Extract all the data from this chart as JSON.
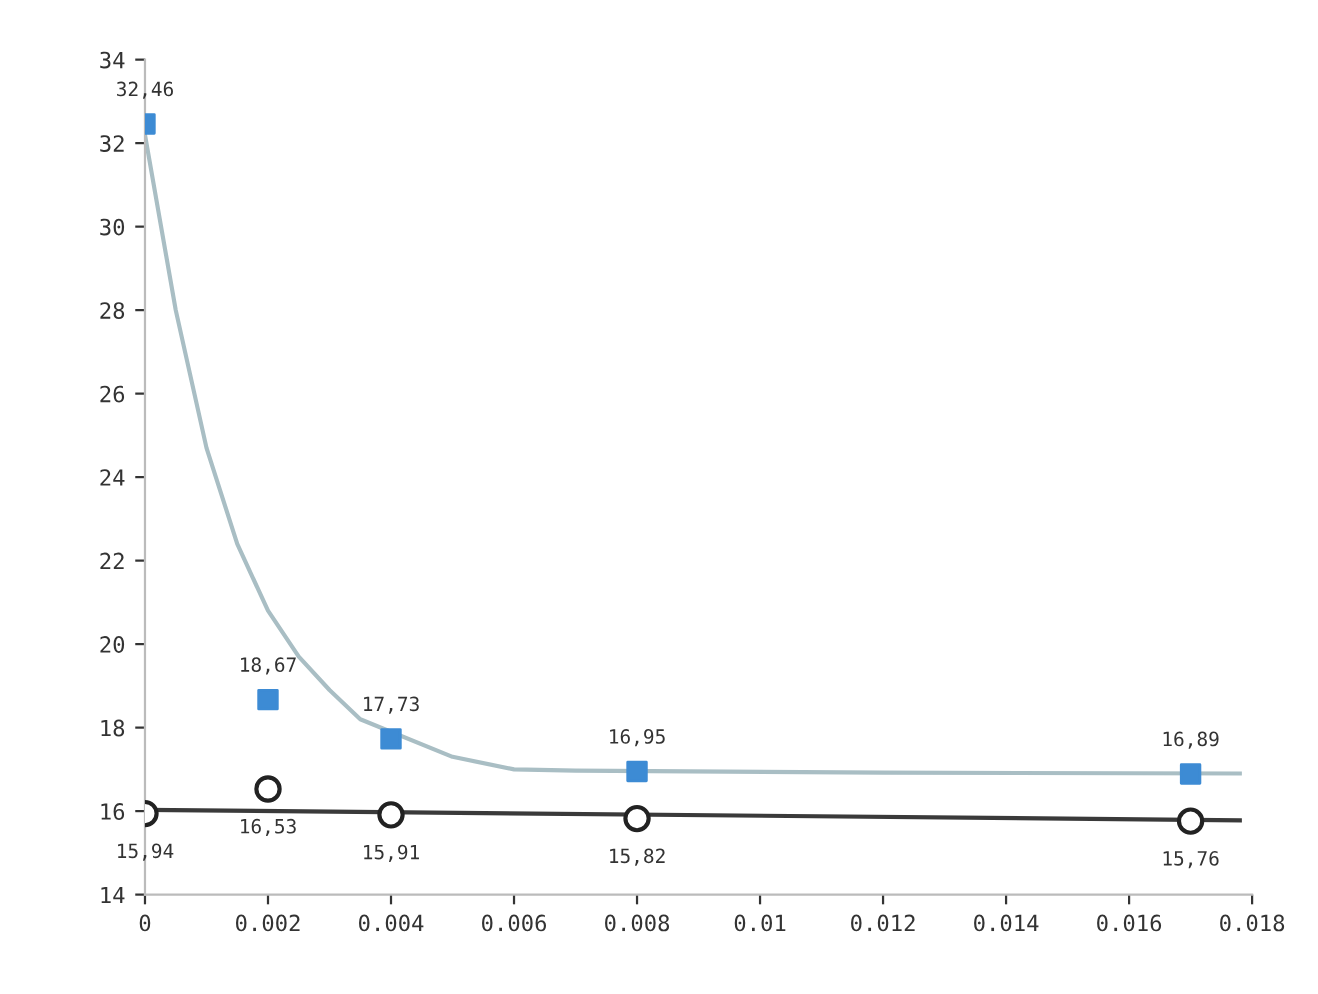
{
  "chart_data": {
    "type": "scatter",
    "xlim": [
      0,
      0.018
    ],
    "ylim": [
      14,
      34
    ],
    "xticks": [
      0,
      0.002,
      0.004,
      0.006,
      0.008,
      0.01,
      0.012,
      0.014,
      0.016,
      0.018
    ],
    "yticks": [
      14,
      16,
      18,
      20,
      22,
      24,
      26,
      28,
      30,
      32,
      34
    ],
    "grid": false,
    "legend": false,
    "series": [
      {
        "type": "line",
        "color": "#a9bec4",
        "marker": "none",
        "x": [
          0,
          0.0005,
          0.001,
          0.0015,
          0.002,
          0.0025,
          0.003,
          0.0035,
          0.005,
          0.006,
          0.007,
          0.012,
          0.0178
        ],
        "values": [
          32.2,
          28.0,
          24.7,
          22.4,
          20.8,
          19.7,
          18.9,
          18.2,
          17.3,
          17.0,
          16.97,
          16.92,
          16.9
        ]
      },
      {
        "type": "line",
        "color": "#3a3a3a",
        "marker": "none",
        "x": [
          0,
          0.0178
        ],
        "values": [
          16.03,
          15.78
        ]
      },
      {
        "color": "#3d8bd4",
        "marker": "square",
        "x": [
          0,
          0.002,
          0.004,
          0.008,
          0.017
        ],
        "values": [
          32.46,
          18.67,
          17.73,
          16.95,
          16.89
        ],
        "value_labels": [
          "32,46",
          "18,67",
          "17,73",
          "16,95",
          "16,89"
        ]
      },
      {
        "color": "#222222",
        "marker": "circle",
        "x": [
          0,
          0.002,
          0.004,
          0.008,
          0.017
        ],
        "values": [
          15.94,
          16.53,
          15.91,
          15.82,
          15.76
        ],
        "value_labels": [
          "15,94",
          "16,53",
          "15,91",
          "15,82",
          "15,76"
        ]
      }
    ]
  }
}
